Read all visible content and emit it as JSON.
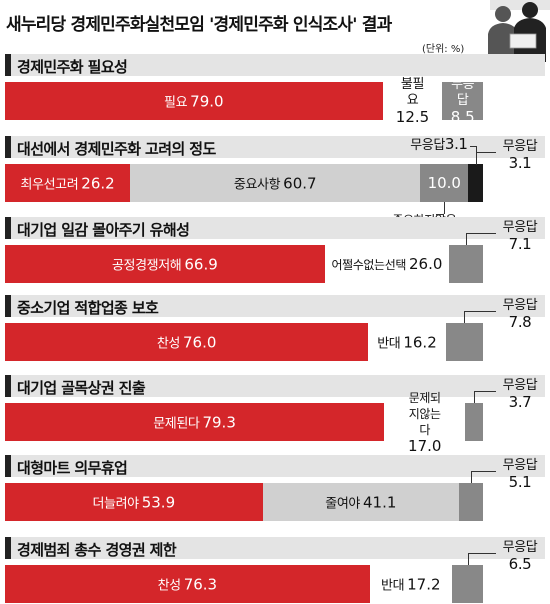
{
  "title": "새누리당 경제민주화실천모임 '경제민주화 인식조사' 결과",
  "unit": "(단위: %)",
  "colors": {
    "red": "#d4262a",
    "light": "#d0d0d0",
    "mid": "#888888",
    "dark": "#1a1a1a",
    "header": "#e4e4e4"
  },
  "chart_data": {
    "type": "bar",
    "stacked": true,
    "orientation": "horizontal",
    "ylim": [
      0,
      100
    ],
    "questions": [
      {
        "title": "경제민주화 필요성",
        "segments": [
          {
            "label": "필요",
            "value": 79.0,
            "display": "79.0",
            "color": "red"
          },
          {
            "label": "불필요",
            "value": 12.5,
            "display": "12.5",
            "color": "white"
          },
          {
            "label": "무응답",
            "value": 8.5,
            "display": "8.5",
            "color": "mid"
          }
        ]
      },
      {
        "title": "대선에서 경제민주화 고려의 정도",
        "segments": [
          {
            "label": "최우선고려",
            "value": 26.2,
            "display": "26.2",
            "color": "red"
          },
          {
            "label": "중요사항",
            "value": 60.7,
            "display": "60.7",
            "color": "light"
          },
          {
            "label": "중요하지않음",
            "value": 10.0,
            "display": "10.0",
            "color": "mid"
          },
          {
            "label": "무응답",
            "value": 3.1,
            "display": "3.1",
            "color": "dark"
          }
        ]
      },
      {
        "title": "대기업 일감 몰아주기 유해성",
        "segments": [
          {
            "label": "공정경쟁저해",
            "value": 66.9,
            "display": "66.9",
            "color": "red"
          },
          {
            "label": "어쩔수없는선택",
            "value": 26.0,
            "display": "26.0",
            "color": "white"
          },
          {
            "label": "무응답",
            "value": 7.1,
            "display": "7.1",
            "color": "mid"
          }
        ]
      },
      {
        "title": "중소기업 적합업종 보호",
        "segments": [
          {
            "label": "찬성",
            "value": 76.0,
            "display": "76.0",
            "color": "red"
          },
          {
            "label": "반대",
            "value": 16.2,
            "display": "16.2",
            "color": "white"
          },
          {
            "label": "무응답",
            "value": 7.8,
            "display": "7.8",
            "color": "mid"
          }
        ]
      },
      {
        "title": "대기업 골목상권 진출",
        "segments": [
          {
            "label": "문제된다",
            "value": 79.3,
            "display": "79.3",
            "color": "red"
          },
          {
            "label": "문제되지않는다",
            "value": 17.0,
            "display": "17.0",
            "color": "white"
          },
          {
            "label": "무응답",
            "value": 3.7,
            "display": "3.7",
            "color": "mid"
          }
        ]
      },
      {
        "title": "대형마트 의무휴업",
        "segments": [
          {
            "label": "더늘려야",
            "value": 53.9,
            "display": "53.9",
            "color": "red"
          },
          {
            "label": "줄여야",
            "value": 41.1,
            "display": "41.1",
            "color": "light"
          },
          {
            "label": "무응답",
            "value": 5.1,
            "display": "5.1",
            "color": "mid"
          }
        ]
      },
      {
        "title": "경제범죄 총수 경영권 제한",
        "segments": [
          {
            "label": "찬성",
            "value": 76.3,
            "display": "76.3",
            "color": "red"
          },
          {
            "label": "반대",
            "value": 17.2,
            "display": "17.2",
            "color": "white"
          },
          {
            "label": "무응답",
            "value": 6.5,
            "display": "6.5",
            "color": "mid"
          }
        ]
      }
    ]
  }
}
